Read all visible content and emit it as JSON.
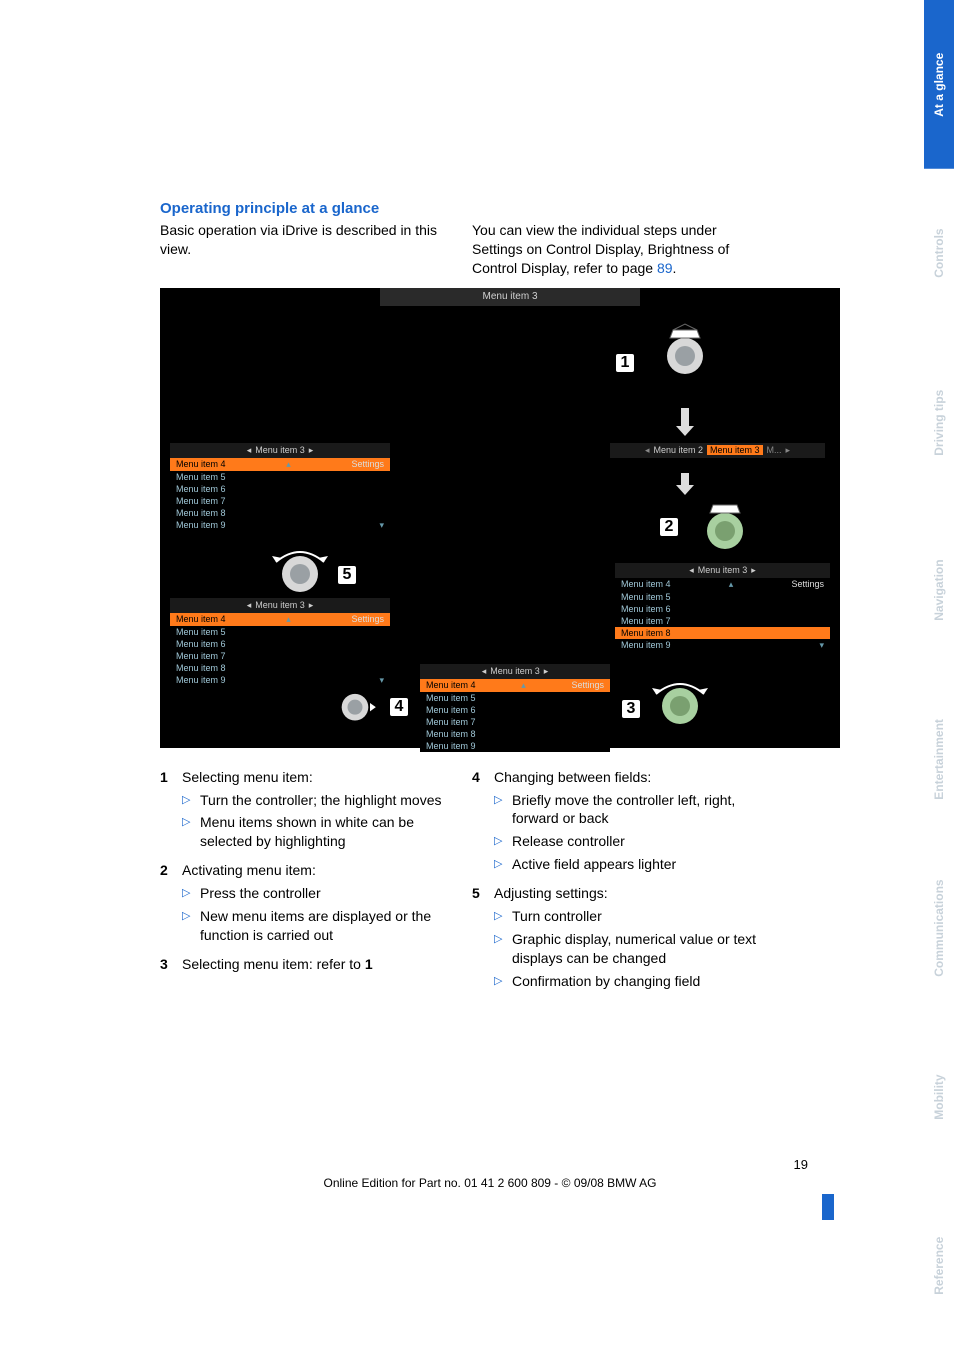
{
  "colors": {
    "heading": "#1a66cc",
    "link": "#1a66cc",
    "body_text": "#000000",
    "bullet": "#1a66cc",
    "figure_bg": "#000000",
    "figure_menu_text": "#a0c8d8",
    "figure_highlight": "#ff7a1a",
    "active_tab_bg": "#1a66cc",
    "active_tab_fg": "#ffffff",
    "inactive_tab_fg": "#c8d2da"
  },
  "heading": "Operating principle at a glance",
  "intro_left": "Basic operation via iDrive is described in this view.",
  "intro_right_a": "You can view the individual steps under Settings on Control Display, Brightness of Control Display, refer to page ",
  "intro_right_link": "89",
  "intro_right_b": ".",
  "figure": {
    "header_label": "Menu item 3",
    "menu_title": "Menu item 3",
    "menu_items": [
      "Menu item 4",
      "Menu item 5",
      "Menu item 6",
      "Menu item 7",
      "Menu item 8",
      "Menu item 9"
    ],
    "settings_label": "Settings",
    "top_right_tabs": [
      "Menu item 2",
      "Menu item 3"
    ],
    "nums": {
      "n1": "1",
      "n2": "2",
      "n3": "3",
      "n4": "4",
      "n5": "5"
    }
  },
  "list_left": [
    {
      "num": "1",
      "title": "Selecting menu item:",
      "sub": [
        "Turn the controller; the highlight moves",
        "Menu items shown in white can be selected by highlighting"
      ]
    },
    {
      "num": "2",
      "title": "Activating menu item:",
      "sub": [
        "Press the controller",
        "New menu items are displayed or the function is carried out"
      ]
    },
    {
      "num": "3",
      "title_a": "Selecting menu item: refer to ",
      "title_b": "1",
      "sub": []
    }
  ],
  "list_right": [
    {
      "num": "4",
      "title": "Changing between fields:",
      "sub": [
        "Briefly move the controller left, right, forward or back",
        "Release controller",
        "Active field appears lighter"
      ]
    },
    {
      "num": "5",
      "title": "Adjusting settings:",
      "sub": [
        "Turn controller",
        "Graphic display, numerical value or text displays can be changed",
        "Confirmation by changing field"
      ]
    }
  ],
  "tabs": [
    {
      "label": "At a glance",
      "active": true
    },
    {
      "label": "Controls",
      "active": false
    },
    {
      "label": "Driving tips",
      "active": false
    },
    {
      "label": "Navigation",
      "active": false
    },
    {
      "label": "Entertainment",
      "active": false
    },
    {
      "label": "Communications",
      "active": false
    },
    {
      "label": "Mobility",
      "active": false
    },
    {
      "label": "Reference",
      "active": false
    }
  ],
  "footer": {
    "page_number": "19",
    "edition": "Online Edition for Part no. 01 41 2 600 809 - © 09/08 BMW AG"
  }
}
